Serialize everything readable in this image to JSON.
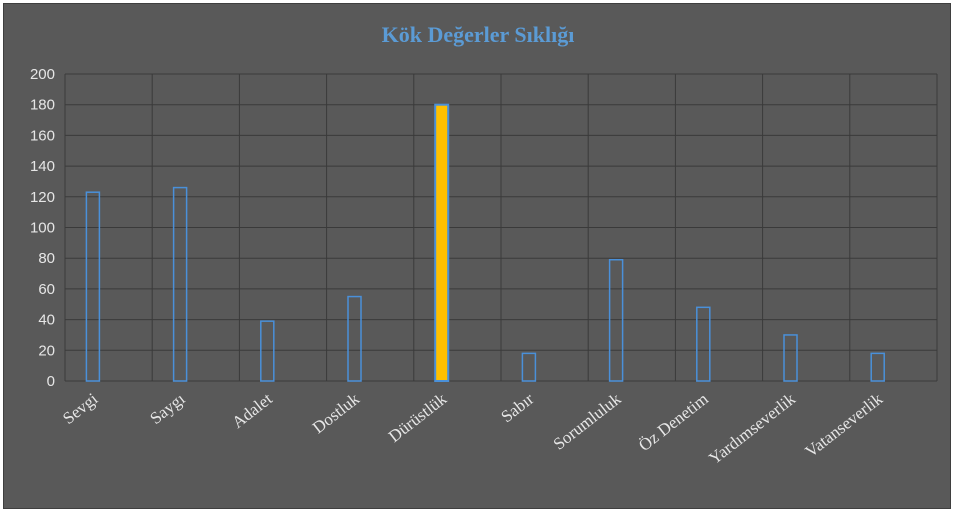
{
  "chart_data": {
    "type": "bar",
    "title": "Kök Değerler Sıklığı",
    "categories": [
      "Sevgi",
      "Saygı",
      "Adalet",
      "Dostluk",
      "Dürüstlük",
      "Sabır",
      "Sorumluluk",
      "Öz Denetim",
      "Yardımseverlik",
      "Vatanseverlik"
    ],
    "values": [
      123,
      126,
      39,
      55,
      180,
      18,
      79,
      48,
      30,
      18
    ],
    "ylim": [
      0,
      200
    ],
    "yticks": [
      "0",
      "20",
      "40",
      "60",
      "80",
      "100",
      "120",
      "140",
      "160",
      "180",
      "200"
    ],
    "grid": true,
    "highlight_index": 4,
    "colors": {
      "background": "#595959",
      "grid": "#3a3a3a",
      "bar_outline": "#4a90d9",
      "highlight_fill": "#ffc000",
      "title": "#5b9bd5",
      "text": "#e6e6e6"
    }
  }
}
